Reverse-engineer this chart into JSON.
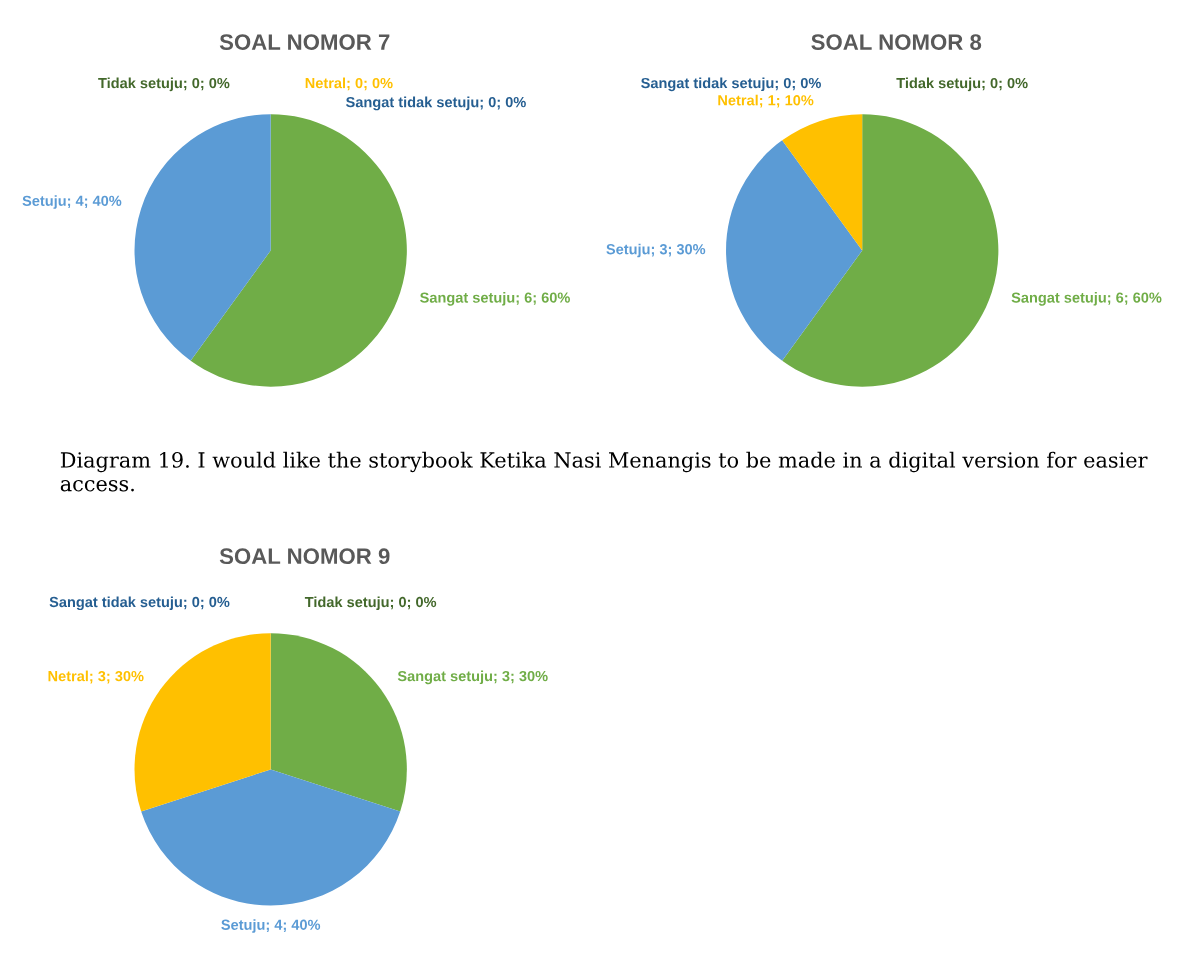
{
  "chart_data": [
    {
      "type": "pie",
      "title": "SOAL NOMOR 7",
      "categories": [
        "Sangat setuju; 6; 60%",
        "Setuju; 4; 40%",
        "Netral; 0; 0%",
        "Tidak setuju; 0; 0%",
        "Sangat tidak setuju; 0; 0%"
      ],
      "values": [
        6,
        4,
        0,
        0,
        0
      ],
      "colors": [
        "#70ad47",
        "#5b9bd5",
        "#ffc000",
        "#43682b",
        "#255e91"
      ]
    },
    {
      "type": "pie",
      "title": "SOAL NOMOR 8",
      "categories": [
        "Sangat setuju; 6; 60%",
        "Setuju; 3; 30%",
        "Netral; 1; 10%",
        "Tidak setuju; 0; 0%",
        "Sangat tidak setuju; 0; 0%"
      ],
      "values": [
        6,
        3,
        1,
        0,
        0
      ],
      "colors": [
        "#70ad47",
        "#5b9bd5",
        "#ffc000",
        "#43682b",
        "#255e91"
      ]
    },
    {
      "type": "pie",
      "title": "SOAL NOMOR 9",
      "categories": [
        "Sangat setuju; 3; 30%",
        "Setuju; 4; 40%",
        "Netral; 3; 30%",
        "Tidak setuju; 0; 0%",
        "Sangat tidak setuju; 0; 0%"
      ],
      "values": [
        3,
        4,
        3,
        0,
        0
      ],
      "colors": [
        "#70ad47",
        "#5b9bd5",
        "#ffc000",
        "#43682b",
        "#255e91"
      ],
      "annotations": [
        "Diagram 19. I would like the storybook Ketika Nasi Menangis to be made in a digital version for easier access."
      ]
    }
  ]
}
